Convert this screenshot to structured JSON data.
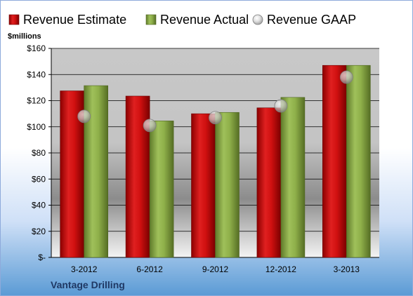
{
  "chart_data": {
    "type": "bar",
    "title": "",
    "ylabel": "$millions",
    "xlabel": "",
    "categories": [
      "3-2012",
      "6-2012",
      "9-2012",
      "12-2012",
      "3-2013"
    ],
    "series": [
      {
        "name": "Revenue Estimate",
        "kind": "bar",
        "color": "#c00000",
        "values": [
          127.5,
          123.5,
          110,
          114.5,
          147
        ]
      },
      {
        "name": "Revenue Actual",
        "kind": "bar",
        "color": "#8aa84b",
        "values": [
          131.5,
          104.5,
          111,
          122.5,
          147
        ]
      },
      {
        "name": "Revenue GAAP",
        "kind": "marker",
        "color": "#a6a6a6",
        "values": [
          108,
          101,
          107,
          116,
          138
        ]
      }
    ],
    "ylim": [
      0,
      160
    ],
    "yticks": [
      0,
      20,
      40,
      60,
      80,
      100,
      120,
      140,
      160
    ],
    "ytick_labels": [
      "$-",
      "$20",
      "$40",
      "$60",
      "$80",
      "$100",
      "$120",
      "$140",
      "$160"
    ],
    "grid": true,
    "legend_position": "top"
  },
  "footer": {
    "company": "Vantage Drilling"
  }
}
